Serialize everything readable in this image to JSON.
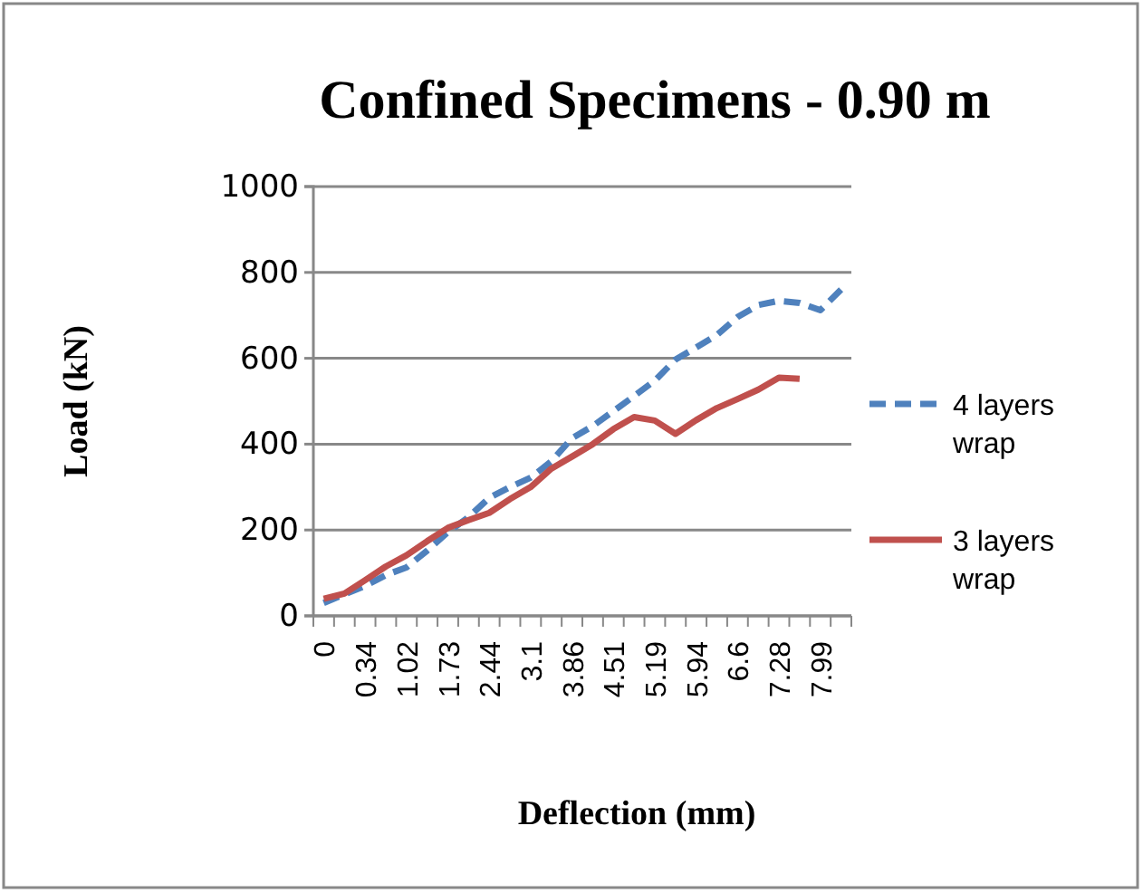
{
  "chart_data": {
    "type": "line",
    "title": "Confined Specimens - 0.90 m",
    "xlabel": "Deflection (mm)",
    "ylabel": "Load (kN)",
    "categories": [
      "0",
      null,
      "0.34",
      null,
      "1.02",
      null,
      "1.73",
      null,
      "2.44",
      null,
      "3.1",
      null,
      "3.86",
      null,
      "4.51",
      null,
      "5.19",
      null,
      "5.94",
      null,
      "6.6",
      null,
      "7.28",
      null,
      "7.99",
      null
    ],
    "series": [
      {
        "name": "4 layers wrap",
        "color": "#4f81bd",
        "line_style": "dashed",
        "values": [
          30,
          50,
          70,
          95,
          113,
          152,
          195,
          230,
          275,
          300,
          322,
          360,
          414,
          442,
          477,
          512,
          548,
          597,
          625,
          654,
          696,
          724,
          734,
          729,
          712,
          760
        ]
      },
      {
        "name": "3 layers wrap",
        "color": "#c0504d",
        "line_style": "solid",
        "values": [
          40,
          52,
          83,
          115,
          141,
          174,
          205,
          223,
          240,
          272,
          300,
          343,
          371,
          400,
          435,
          463,
          455,
          424,
          456,
          484,
          505,
          527,
          555,
          552,
          null,
          null
        ]
      }
    ],
    "ylim": [
      0,
      1000
    ],
    "yticks": [
      0,
      200,
      400,
      600,
      800,
      1000
    ],
    "grid": "y",
    "legend": "right",
    "marker": "none"
  }
}
